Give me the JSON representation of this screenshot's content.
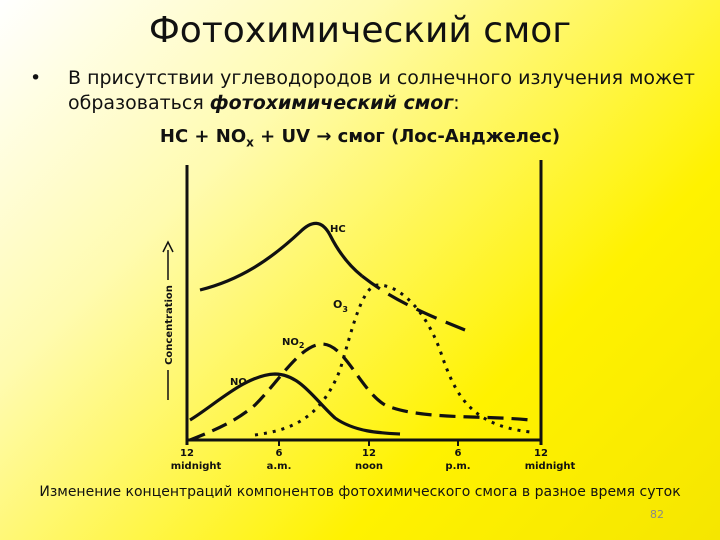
{
  "title": "Фотохимический смог",
  "bullet": {
    "text": "В присутствии углеводородов и солнечного излучения может образоваться ",
    "emphasis": "фотохимический смог",
    "end": ":"
  },
  "formula": {
    "part1": "HC + NO",
    "sub": "x",
    "part2": " + UV → смог (Лос-Анджелес)"
  },
  "figure": {
    "y_label": "Concentration",
    "curve_labels": [
      {
        "text": "HC"
      },
      {
        "text": "O",
        "sub": "3"
      },
      {
        "text": "NO",
        "sub": "2"
      },
      {
        "text": "NO"
      }
    ],
    "x_labels": [
      {
        "top": "12",
        "bottom": "midnight"
      },
      {
        "top": "6",
        "bottom": "a.m."
      },
      {
        "top": "12",
        "bottom": "noon"
      },
      {
        "top": "6",
        "bottom": "p.m."
      },
      {
        "top": "12",
        "bottom": "midnight"
      }
    ]
  },
  "caption": "Изменение концентраций компонентов фотохимического смога в разное время суток",
  "page_number": "82"
}
